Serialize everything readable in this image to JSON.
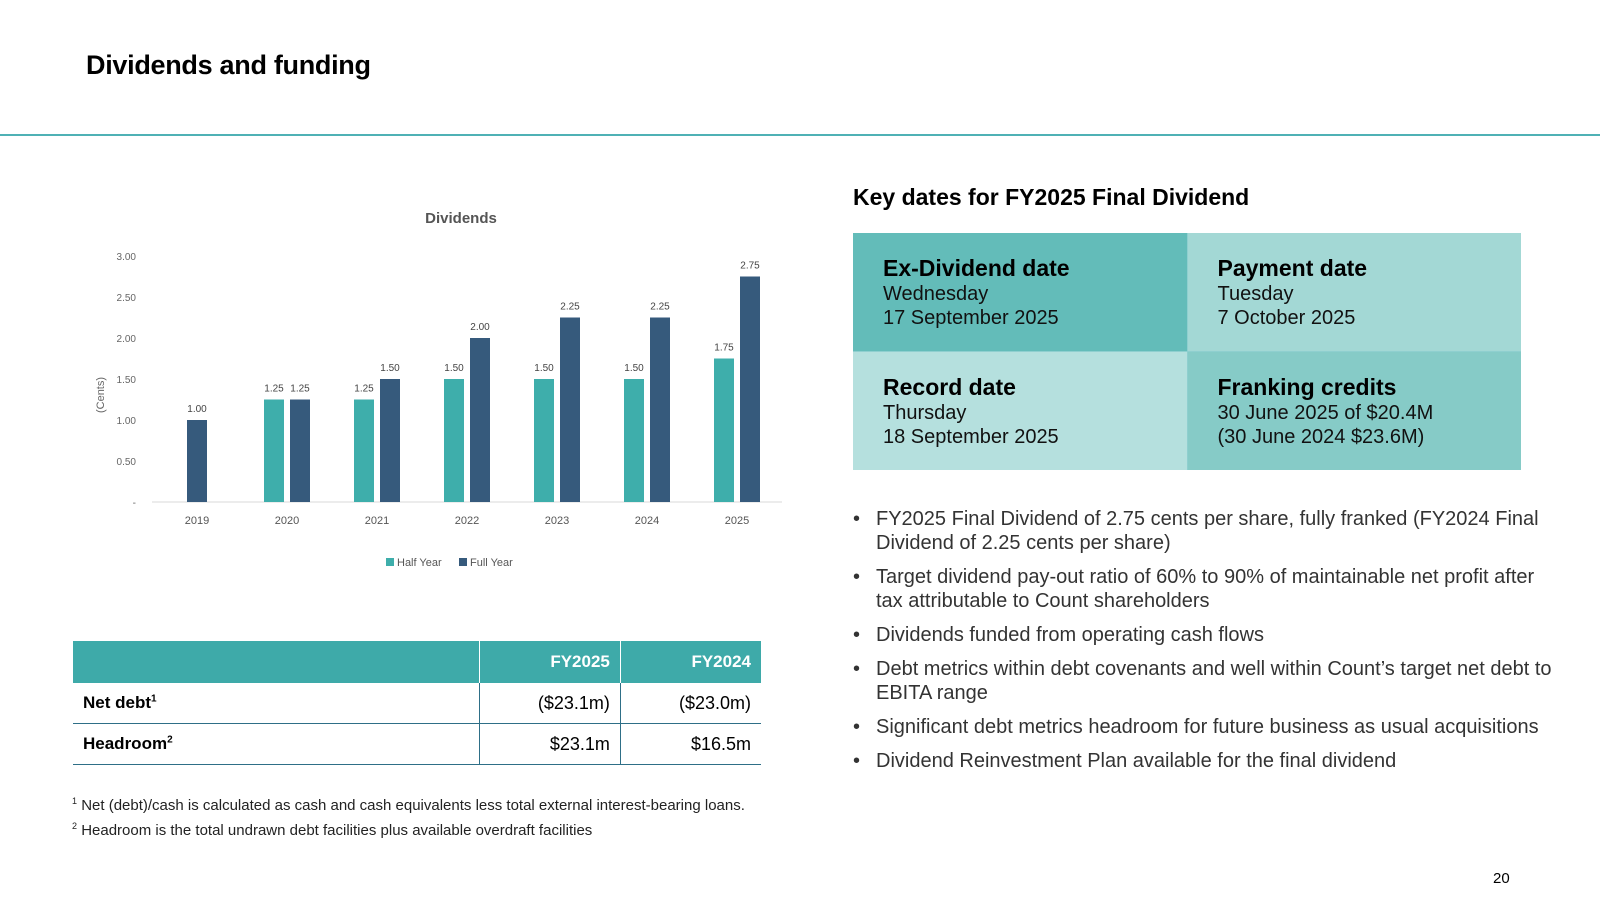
{
  "page": {
    "title": "Dividends and funding",
    "page_number": "20"
  },
  "chart_data": {
    "type": "bar",
    "title": "Dividends",
    "xlabel": "",
    "ylabel": "(Cents)",
    "ylim": [
      0,
      3.0
    ],
    "y_ticks": [
      "-",
      "0.50",
      "1.00",
      "1.50",
      "2.00",
      "2.50",
      "3.00"
    ],
    "categories": [
      "2019",
      "2020",
      "2021",
      "2022",
      "2023",
      "2024",
      "2025"
    ],
    "series": [
      {
        "name": "Half Year",
        "color": "#3eaeab",
        "values": [
          null,
          1.25,
          1.25,
          1.5,
          1.5,
          1.5,
          1.75
        ],
        "labels": [
          "",
          "1.25",
          "1.25",
          "1.50",
          "1.50",
          "1.50",
          "1.75"
        ]
      },
      {
        "name": "Full Year",
        "color": "#365a7c",
        "values": [
          1.0,
          1.25,
          1.5,
          2.0,
          2.25,
          2.25,
          2.75
        ],
        "labels": [
          "1.00",
          "1.25",
          "1.50",
          "2.00",
          "2.25",
          "2.25",
          "2.75"
        ]
      }
    ],
    "legend": "bottom"
  },
  "key_dates": {
    "title": "Key dates for FY2025 Final Dividend",
    "ex_dividend": {
      "label": "Ex-Dividend date",
      "line1": "Wednesday",
      "line2": "17 September 2025"
    },
    "payment": {
      "label": "Payment date",
      "line1": "Tuesday",
      "line2": "7 October 2025"
    },
    "record": {
      "label": "Record date",
      "line1": "Thursday",
      "line2": "18 September 2025"
    },
    "franking": {
      "label": "Franking credits",
      "line1": "30 June 2025 of $20.4M",
      "line2": "(30 June 2024 $23.6M)"
    }
  },
  "bullets": [
    "FY2025 Final Dividend of 2.75 cents per share, fully franked (FY2024 Final Dividend of 2.25 cents per share)",
    "Target dividend pay-out ratio of 60% to 90% of maintainable net profit after tax attributable to Count shareholders",
    "Dividends funded from operating cash flows",
    "Debt metrics within debt covenants and well within Count’s target net debt to EBITA range",
    "Significant debt metrics headroom for future business as usual acquisitions",
    "Dividend Reinvestment Plan available for the final dividend"
  ],
  "table": {
    "headers": [
      "FY2025",
      "FY2024"
    ],
    "rows": [
      {
        "label": "Net debt",
        "sup": "1",
        "fy2025": "($23.1m)",
        "fy2024": "($23.0m)"
      },
      {
        "label": "Headroom",
        "sup": "2",
        "fy2025": "$23.1m",
        "fy2024": "$16.5m"
      }
    ]
  },
  "footnotes": [
    {
      "sup": "1",
      "text": "Net (debt)/cash is calculated as cash and cash equivalents less total external interest-bearing loans."
    },
    {
      "sup": "2",
      "text": "Headroom is the total undrawn debt facilities plus available overdraft facilities"
    }
  ]
}
